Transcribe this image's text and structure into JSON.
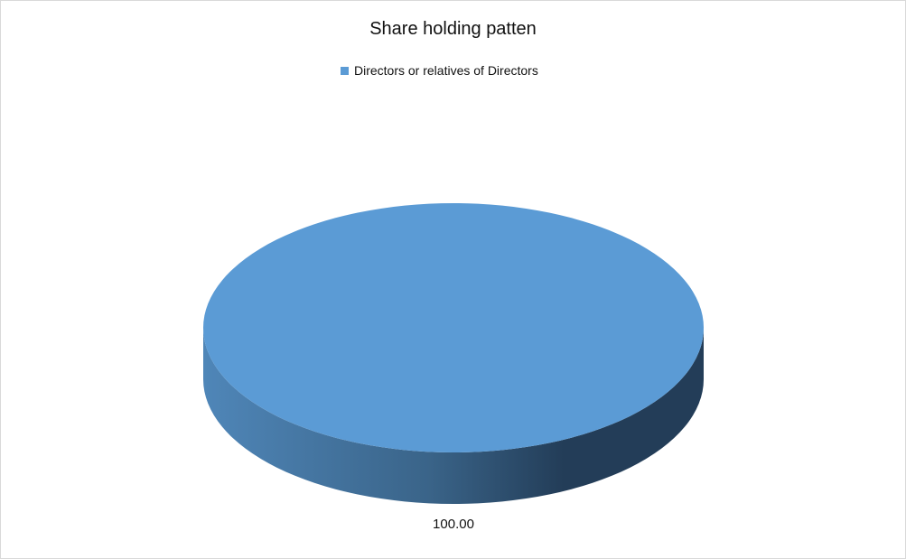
{
  "chart_data": {
    "type": "pie",
    "title": "Share holding patten",
    "categories": [
      "Directors or relatives of Directors"
    ],
    "values": [
      100.0
    ],
    "data_labels": [
      "100.00"
    ],
    "legend_position": "top",
    "three_d": true,
    "colors": {
      "slice": "#5b9bd5",
      "side_light": "#4f86b8",
      "side_dark": "#233d58"
    }
  }
}
